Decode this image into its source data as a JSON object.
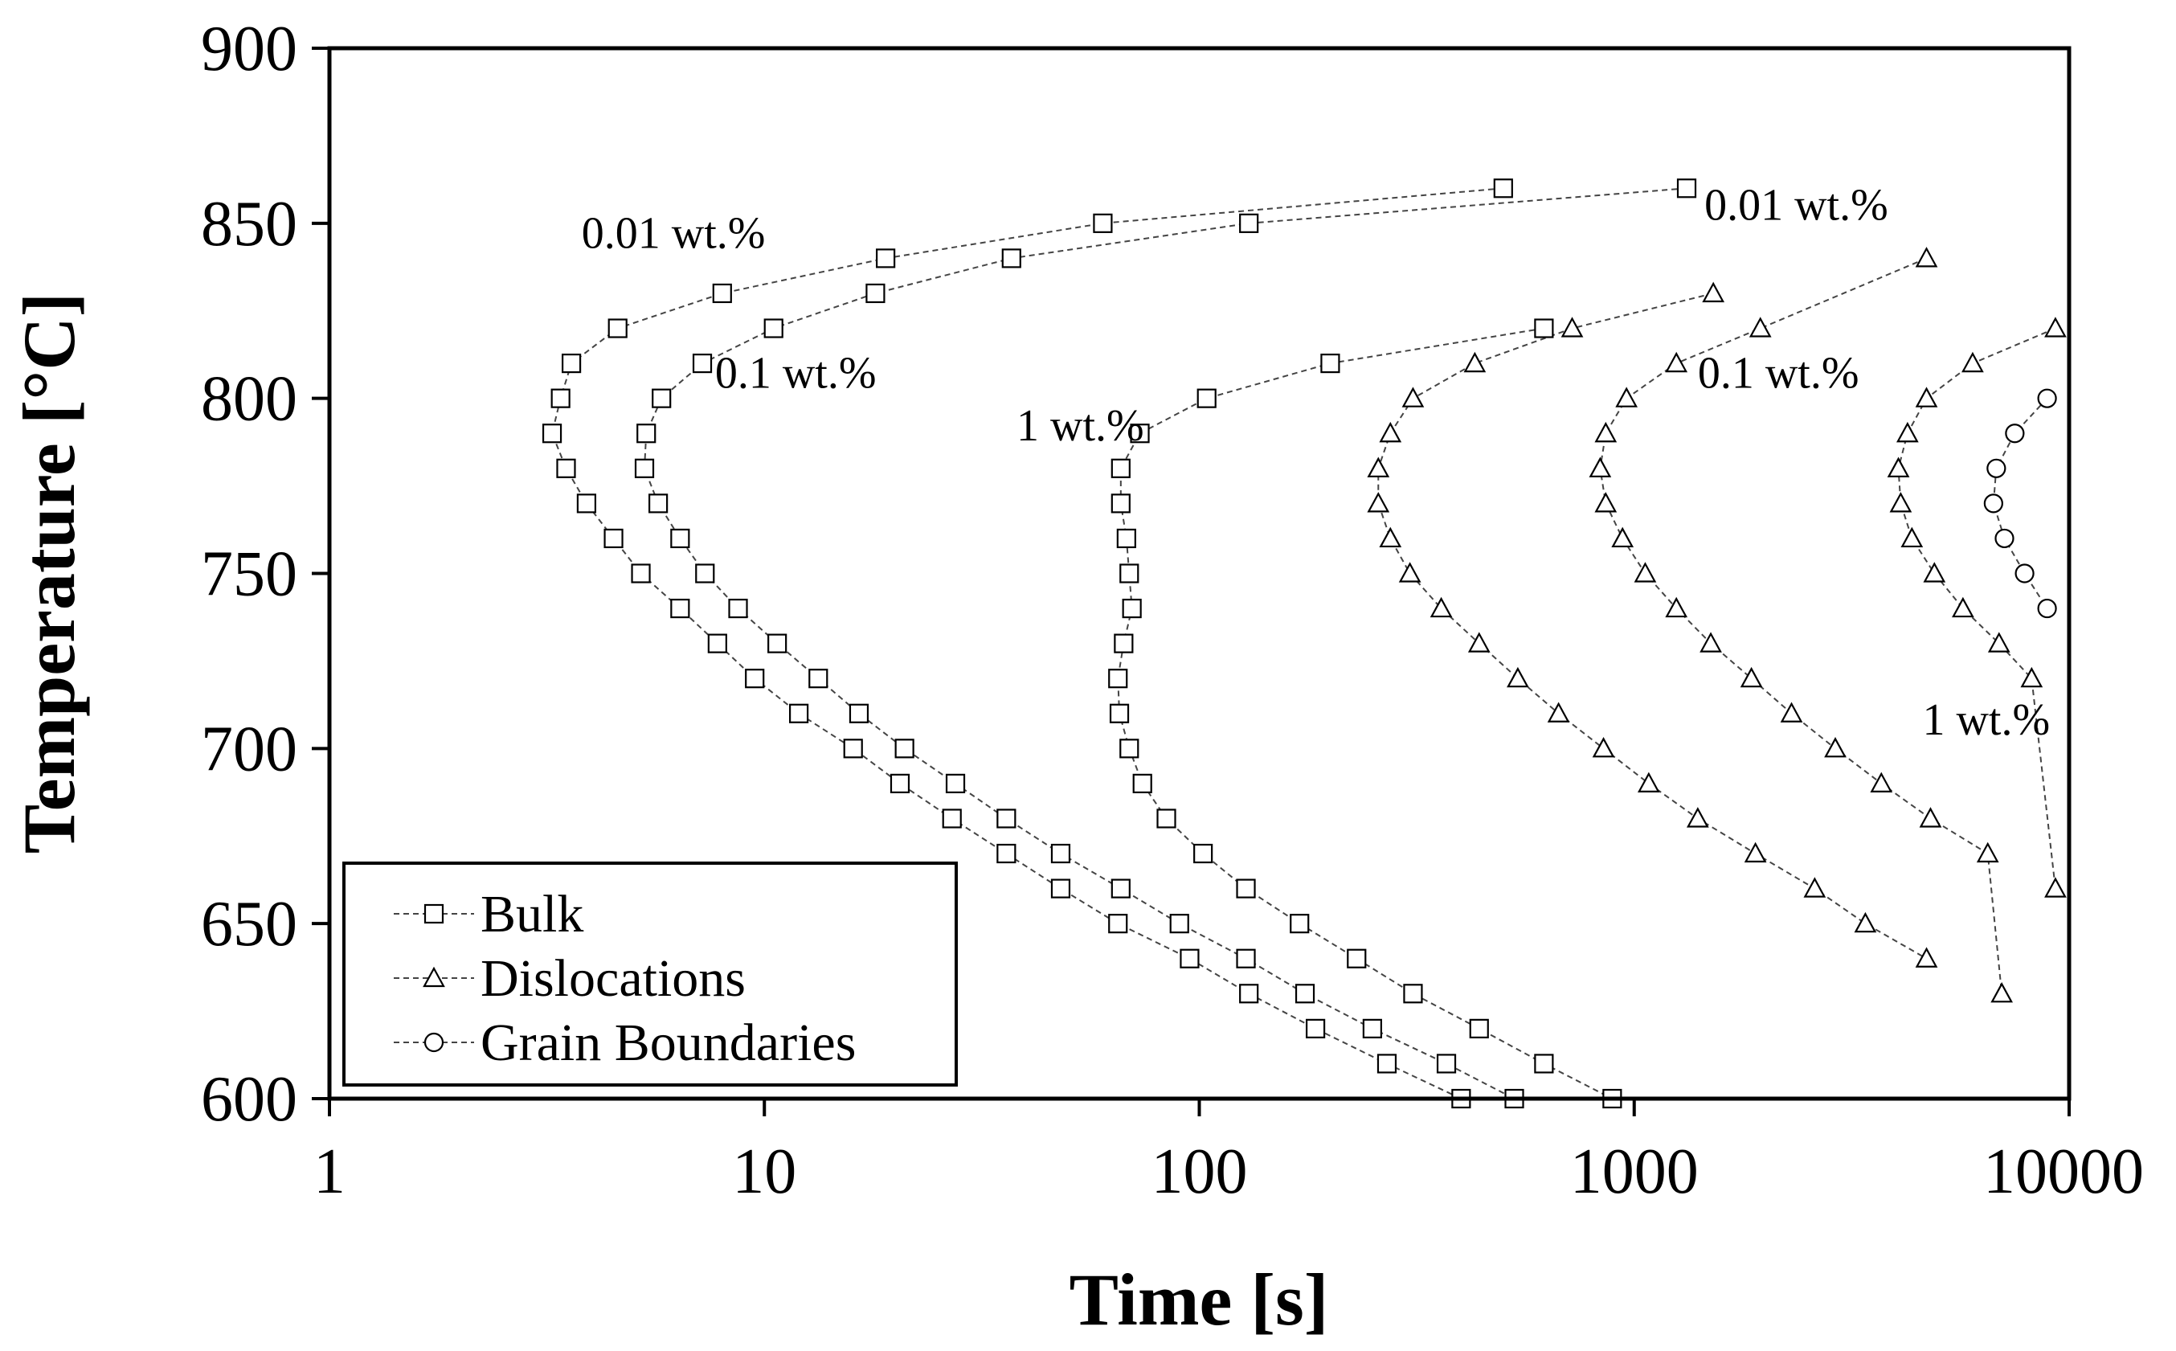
{
  "chart_data": {
    "type": "scatter",
    "title": "",
    "xlabel": "Time  [s]",
    "ylabel": "Temperature  [°C]",
    "xscale": "log",
    "xlim": [
      1,
      10000
    ],
    "ylim": [
      600,
      900
    ],
    "xticks": [
      "1",
      "10",
      "100",
      "1000",
      "10000"
    ],
    "yticks": [
      "600",
      "650",
      "700",
      "750",
      "800",
      "850",
      "900"
    ],
    "legend": {
      "placement": "bottom-left",
      "entries": [
        {
          "name": "Bulk",
          "marker": "square"
        },
        {
          "name": "Dislocations",
          "marker": "triangle"
        },
        {
          "name": "Grain Boundaries",
          "marker": "circle"
        }
      ]
    },
    "annotations": [
      {
        "text": "0.01 wt.%",
        "x": 3.8,
        "y": 843
      },
      {
        "text": "0.1 wt.%",
        "x": 7.7,
        "y": 803
      },
      {
        "text": "1 wt.%",
        "x": 38,
        "y": 788
      },
      {
        "text": "0.01 wt.%",
        "x": 1450,
        "y": 851
      },
      {
        "text": "0.1 wt.%",
        "x": 1400,
        "y": 803
      },
      {
        "text": "1 wt.%",
        "x": 4600,
        "y": 704
      }
    ],
    "series": [
      {
        "name": "Bulk 0.01 wt.%",
        "marker": "square",
        "x": [
          500,
          60,
          19,
          8,
          4.6,
          3.6,
          3.4,
          3.25,
          3.5,
          3.9,
          4.5,
          5.2,
          6.4,
          7.8,
          9.5,
          12,
          16,
          20.5,
          27,
          36,
          48,
          65,
          95,
          130,
          185,
          270,
          400
        ],
        "y": [
          860,
          850,
          840,
          830,
          820,
          810,
          800,
          790,
          780,
          770,
          760,
          750,
          740,
          730,
          720,
          710,
          700,
          690,
          680,
          670,
          660,
          650,
          640,
          630,
          620,
          610,
          600
        ]
      },
      {
        "name": "Bulk 0.1 wt.%",
        "marker": "square",
        "x": [
          1320,
          130,
          37,
          18,
          10.5,
          7.2,
          5.8,
          5.35,
          5.3,
          5.7,
          6.4,
          7.3,
          8.7,
          10.7,
          13.3,
          16.5,
          21,
          27.5,
          36,
          48,
          66,
          90,
          128,
          175,
          250,
          370,
          530
        ],
        "y": [
          860,
          850,
          840,
          830,
          820,
          810,
          800,
          790,
          780,
          770,
          760,
          750,
          740,
          730,
          720,
          710,
          700,
          690,
          680,
          670,
          660,
          650,
          640,
          630,
          620,
          610,
          600
        ]
      },
      {
        "name": "Bulk 1 wt.%",
        "marker": "square",
        "x": [
          620,
          200,
          104,
          73,
          66,
          66,
          68,
          69,
          70,
          67,
          65,
          65.5,
          69,
          74,
          84,
          102,
          128,
          170,
          230,
          310,
          440,
          620,
          890
        ],
        "y": [
          820,
          810,
          800,
          790,
          780,
          770,
          760,
          750,
          740,
          730,
          720,
          710,
          700,
          690,
          680,
          670,
          660,
          650,
          640,
          630,
          620,
          610,
          600
        ]
      },
      {
        "name": "Dislocations 0.01 wt.%",
        "marker": "triangle",
        "x": [
          1520,
          720,
          430,
          310,
          275,
          258,
          258,
          275,
          305,
          360,
          440,
          540,
          670,
          850,
          1080,
          1400,
          1900,
          2600,
          3400,
          4700
        ],
        "y": [
          830,
          820,
          810,
          800,
          790,
          780,
          770,
          760,
          750,
          740,
          730,
          720,
          710,
          700,
          690,
          680,
          670,
          660,
          650,
          640
        ]
      },
      {
        "name": "Dislocations 0.1 wt.%",
        "marker": "triangle",
        "x": [
          4700,
          1950,
          1250,
          960,
          860,
          835,
          860,
          940,
          1060,
          1250,
          1500,
          1860,
          2300,
          2900,
          3700,
          4800,
          6500,
          7000
        ],
        "y": [
          840,
          820,
          810,
          800,
          790,
          780,
          770,
          760,
          750,
          740,
          730,
          720,
          710,
          700,
          690,
          680,
          670,
          630
        ]
      },
      {
        "name": "Dislocations 1 wt.%",
        "marker": "triangle",
        "x": [
          9300,
          6000,
          4700,
          4250,
          4050,
          4100,
          4350,
          4900,
          5700,
          6900,
          8200,
          9300
        ],
        "y": [
          820,
          810,
          800,
          790,
          780,
          770,
          760,
          750,
          740,
          730,
          720,
          660
        ]
      },
      {
        "name": "Grain Boundaries",
        "marker": "circle",
        "x": [
          8900,
          7500,
          6800,
          6700,
          7100,
          7900,
          8900
        ],
        "y": [
          800,
          790,
          780,
          770,
          760,
          750,
          740
        ]
      }
    ]
  }
}
